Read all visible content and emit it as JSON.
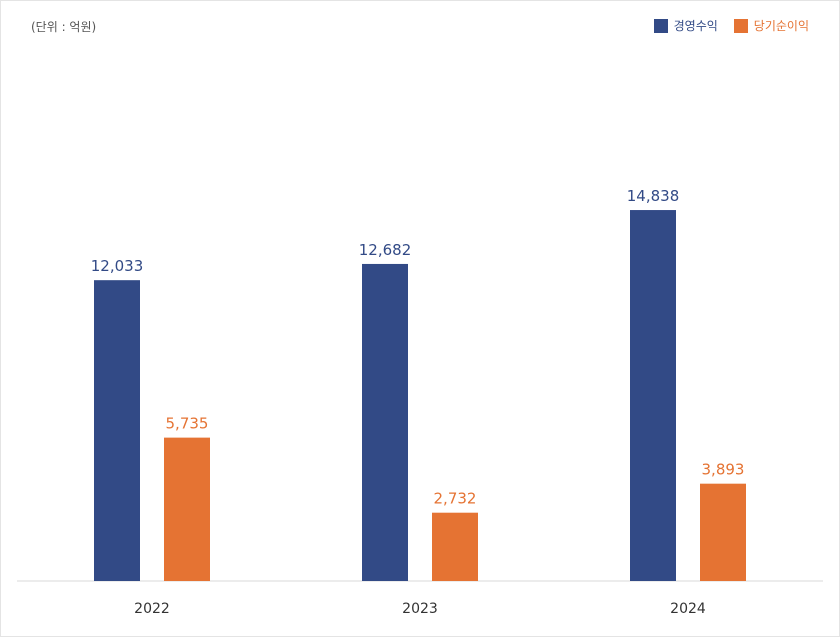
{
  "unit_label": "(단위 : 억원)",
  "colors": {
    "revenue": "#324a86",
    "net_income": "#e57333",
    "axis": "#d9d9d9",
    "tick_text": "#333333"
  },
  "chart_data": {
    "type": "bar",
    "categories": [
      "2022",
      "2023",
      "2024"
    ],
    "series": [
      {
        "name": "경영수익",
        "values": [
          12033,
          12682,
          14838
        ],
        "labels": [
          "12,033",
          "12,682",
          "14,838"
        ]
      },
      {
        "name": "당기순이익",
        "values": [
          5735,
          2732,
          3893
        ],
        "labels": [
          "5,735",
          "2,732",
          "3,893"
        ]
      }
    ],
    "ylim": [
      0,
      17000
    ],
    "grid": false,
    "legend": "top-right"
  }
}
